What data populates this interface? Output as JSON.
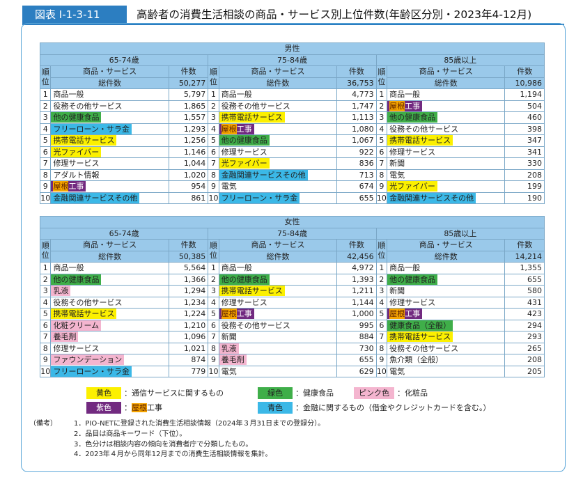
{
  "header": {
    "tag": "図表 Ⅰ-1-3-11",
    "title": "高齢者の消費生活相談の商品・サービス別上位件数(年齢区分別・2023年4-12月)"
  },
  "male": {
    "label": "男性",
    "groups": [
      {
        "age": "65-74歳",
        "rank_label": "順位",
        "item_label": "商品・サービス",
        "count_label": "件数",
        "total_label": "総件数",
        "total": "50,277",
        "rows": [
          {
            "rank": "1",
            "item": "商品一般",
            "color": "",
            "count": "5,797"
          },
          {
            "rank": "2",
            "item": "役務その他サービス",
            "color": "",
            "count": "1,865"
          },
          {
            "rank": "3",
            "item": "他の健康食品",
            "color": "green",
            "count": "1,557"
          },
          {
            "rank": "4",
            "item": "フリーローン・サラ金",
            "color": "blue",
            "count": "1,293"
          },
          {
            "rank": "5",
            "item": "携帯電話サービス",
            "color": "yellow",
            "count": "1,256"
          },
          {
            "rank": "6",
            "item": "光ファイバー",
            "color": "yellow",
            "count": "1,146"
          },
          {
            "rank": "7",
            "item": "修理サービス",
            "color": "",
            "count": "1,044"
          },
          {
            "rank": "8",
            "item": "アダルト情報",
            "color": "",
            "count": "1,020"
          },
          {
            "rank": "9",
            "item": "屋根工事",
            "color": "purple",
            "count": "954"
          },
          {
            "rank": "10",
            "item": "金融関連サービスその他",
            "color": "blue",
            "count": "861"
          }
        ]
      },
      {
        "age": "75-84歳",
        "rank_label": "順位",
        "item_label": "商品・サービス",
        "count_label": "件数",
        "total_label": "総件数",
        "total": "36,753",
        "rows": [
          {
            "rank": "1",
            "item": "商品一般",
            "color": "",
            "count": "4,773"
          },
          {
            "rank": "2",
            "item": "役務その他サービス",
            "color": "",
            "count": "1,747"
          },
          {
            "rank": "3",
            "item": "携帯電話サービス",
            "color": "yellow",
            "count": "1,113"
          },
          {
            "rank": "4",
            "item": "屋根工事",
            "color": "purple",
            "count": "1,080"
          },
          {
            "rank": "5",
            "item": "他の健康食品",
            "color": "green",
            "count": "1,067"
          },
          {
            "rank": "6",
            "item": "修理サービス",
            "color": "",
            "count": "922"
          },
          {
            "rank": "7",
            "item": "光ファイバー",
            "color": "yellow",
            "count": "836"
          },
          {
            "rank": "8",
            "item": "金融関連サービスその他",
            "color": "blue",
            "count": "713"
          },
          {
            "rank": "9",
            "item": "電気",
            "color": "",
            "count": "674"
          },
          {
            "rank": "10",
            "item": "フリーローン・サラ金",
            "color": "blue",
            "count": "655"
          }
        ]
      },
      {
        "age": "85歳以上",
        "rank_label": "順位",
        "item_label": "商品・サービス",
        "count_label": "件数",
        "total_label": "総件数",
        "total": "10,986",
        "rows": [
          {
            "rank": "1",
            "item": "商品一般",
            "color": "",
            "count": "1,194"
          },
          {
            "rank": "2",
            "item": "屋根工事",
            "color": "purple",
            "count": "504"
          },
          {
            "rank": "3",
            "item": "他の健康食品",
            "color": "green",
            "count": "460"
          },
          {
            "rank": "4",
            "item": "役務その他サービス",
            "color": "",
            "count": "398"
          },
          {
            "rank": "5",
            "item": "携帯電話サービス",
            "color": "yellow",
            "count": "347"
          },
          {
            "rank": "6",
            "item": "修理サービス",
            "color": "",
            "count": "341"
          },
          {
            "rank": "7",
            "item": "新聞",
            "color": "",
            "count": "330"
          },
          {
            "rank": "8",
            "item": "電気",
            "color": "",
            "count": "208"
          },
          {
            "rank": "9",
            "item": "光ファイバー",
            "color": "yellow",
            "count": "199"
          },
          {
            "rank": "10",
            "item": "金融関連サービスその他",
            "color": "blue",
            "count": "190"
          }
        ]
      }
    ]
  },
  "female": {
    "label": "女性",
    "groups": [
      {
        "age": "65-74歳",
        "rank_label": "順位",
        "item_label": "商品・サービス",
        "count_label": "件数",
        "total_label": "総件数",
        "total": "50,385",
        "rows": [
          {
            "rank": "1",
            "item": "商品一般",
            "color": "",
            "count": "5,564"
          },
          {
            "rank": "2",
            "item": "他の健康食品",
            "color": "green",
            "count": "1,366"
          },
          {
            "rank": "3",
            "item": "乳液",
            "color": "pink",
            "count": "1,294"
          },
          {
            "rank": "4",
            "item": "役務その他サービス",
            "color": "",
            "count": "1,234"
          },
          {
            "rank": "5",
            "item": "携帯電話サービス",
            "color": "yellow",
            "count": "1,224"
          },
          {
            "rank": "6",
            "item": "化粧クリーム",
            "color": "pink",
            "count": "1,210"
          },
          {
            "rank": "7",
            "item": "養毛剤",
            "color": "pink",
            "count": "1,096"
          },
          {
            "rank": "8",
            "item": "修理サービス",
            "color": "",
            "count": "1,021"
          },
          {
            "rank": "9",
            "item": "ファウンデーション",
            "color": "pink",
            "count": "874"
          },
          {
            "rank": "10",
            "item": "フリーローン・サラ金",
            "color": "blue",
            "count": "779"
          }
        ]
      },
      {
        "age": "75-84歳",
        "rank_label": "順位",
        "item_label": "商品・サービス",
        "count_label": "件数",
        "total_label": "総件数",
        "total": "42,456",
        "rows": [
          {
            "rank": "1",
            "item": "商品一般",
            "color": "",
            "count": "4,972"
          },
          {
            "rank": "2",
            "item": "他の健康食品",
            "color": "green",
            "count": "1,393"
          },
          {
            "rank": "3",
            "item": "携帯電話サービス",
            "color": "yellow",
            "count": "1,211"
          },
          {
            "rank": "4",
            "item": "修理サービス",
            "color": "",
            "count": "1,144"
          },
          {
            "rank": "5",
            "item": "屋根工事",
            "color": "purple",
            "count": "1,000"
          },
          {
            "rank": "6",
            "item": "役務その他サービス",
            "color": "",
            "count": "995"
          },
          {
            "rank": "7",
            "item": "新聞",
            "color": "",
            "count": "884"
          },
          {
            "rank": "8",
            "item": "乳液",
            "color": "pink",
            "count": "730"
          },
          {
            "rank": "9",
            "item": "養毛剤",
            "color": "pink",
            "count": "655"
          },
          {
            "rank": "10",
            "item": "電気",
            "color": "",
            "count": "629"
          }
        ]
      },
      {
        "age": "85歳以上",
        "rank_label": "順位",
        "item_label": "商品・サービス",
        "count_label": "件数",
        "total_label": "総件数",
        "total": "14,214",
        "rows": [
          {
            "rank": "1",
            "item": "商品一般",
            "color": "",
            "count": "1,355"
          },
          {
            "rank": "2",
            "item": "他の健康食品",
            "color": "green",
            "count": "655"
          },
          {
            "rank": "3",
            "item": "新聞",
            "color": "",
            "count": "580"
          },
          {
            "rank": "4",
            "item": "修理サービス",
            "color": "",
            "count": "431"
          },
          {
            "rank": "5",
            "item": "屋根工事",
            "color": "purple",
            "count": "423"
          },
          {
            "rank": "6",
            "item": "健康食品（全般）",
            "color": "green",
            "count": "294"
          },
          {
            "rank": "7",
            "item": "携帯電話サービス",
            "color": "yellow",
            "count": "293"
          },
          {
            "rank": "8",
            "item": "役務その他サービス",
            "color": "",
            "count": "265"
          },
          {
            "rank": "9",
            "item": "魚介類（全般）",
            "color": "",
            "count": "208"
          },
          {
            "rank": "10",
            "item": "電気",
            "color": "",
            "count": "205"
          }
        ]
      }
    ]
  },
  "legend": {
    "yellow": {
      "label": "黄色",
      "desc": "：通信サービスに関するもの"
    },
    "green": {
      "label": "緑色",
      "desc": "：健康食品"
    },
    "pink": {
      "label": "ピンク色",
      "desc": "：化粧品"
    },
    "purple": {
      "label": "紫色",
      "desc_pre": "：",
      "desc_hl": "屋根",
      "desc_post": "工事"
    },
    "blue": {
      "label": "青色",
      "desc": "：金融に関するもの（借金やクレジットカードを含む。）"
    }
  },
  "notes": {
    "label": "（備考）",
    "items": [
      "1．PIO-NETに登録された消費生活相談情報（2024年３月31日までの登録分）。",
      "2．品目は商品キーワード（下位）。",
      "3．色分けは相談内容の傾向を消費者庁で分類したもの。",
      "4．2023年４月から同年12月までの消費生活相談情報を集計。"
    ]
  }
}
